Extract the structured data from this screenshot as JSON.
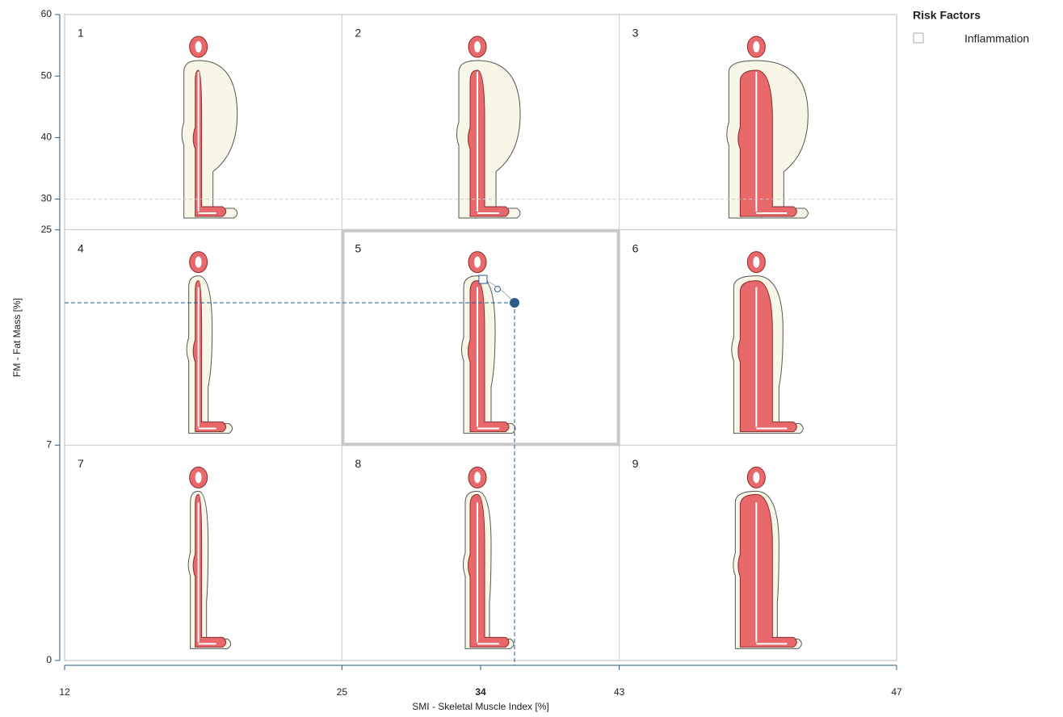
{
  "chart_data": {
    "type": "scatter",
    "x_label": "SMI - Skeletal Muscle Index [%]",
    "y_label": "FM - Fat Mass [%]",
    "xlim": [
      12,
      47
    ],
    "ylim": [
      0,
      60
    ],
    "xticks": [
      12,
      25,
      34,
      43,
      47
    ],
    "yticks": [
      0,
      7,
      25,
      30,
      40,
      50,
      60
    ],
    "x": [
      36.2
    ],
    "y": [
      18.9
    ],
    "color": "#2a5a8a",
    "cells": [
      "1",
      "2",
      "3",
      "4",
      "5",
      "6",
      "7",
      "8",
      "9"
    ],
    "legend": {
      "title": "Risk Factors",
      "items": [
        "Inflammation"
      ]
    }
  }
}
